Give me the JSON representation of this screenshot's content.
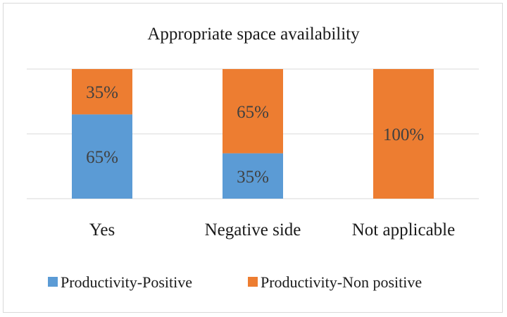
{
  "chart_data": {
    "type": "bar",
    "stacked": true,
    "percent_stacked": true,
    "title": "Appropriate space availability",
    "categories": [
      "Yes",
      "Negative side",
      "Not applicable"
    ],
    "series": [
      {
        "name": "Productivity-Positive",
        "values": [
          65,
          35,
          0
        ],
        "labels": [
          "65%",
          "35%",
          ""
        ],
        "color": "#5b9bd5"
      },
      {
        "name": "Productivity-Non positive",
        "values": [
          35,
          65,
          100
        ],
        "labels": [
          "35%",
          "65%",
          "100%"
        ],
        "color": "#ed7d31"
      }
    ],
    "ylim": [
      0,
      100
    ],
    "y_axis_visible": false,
    "grid": true,
    "legend_position": "bottom"
  }
}
